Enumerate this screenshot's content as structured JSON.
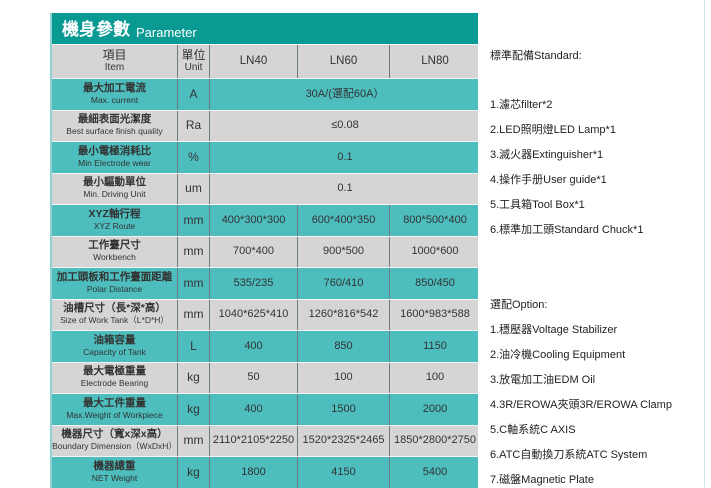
{
  "title": {
    "zh": "機身參數",
    "en": "Parameter"
  },
  "header": {
    "item_zh": "項目",
    "item_en": "Item",
    "unit_zh": "單位",
    "unit_en": "Unit",
    "models": [
      "LN40",
      "LN60",
      "LN80"
    ]
  },
  "rows": [
    {
      "zh": "最大加工電流",
      "en": "Max. current",
      "unit": "A",
      "span": "30A/(選配60A）",
      "style": "t"
    },
    {
      "zh": "最細表面光潔度",
      "en": "Best surface finish quality",
      "unit": "Ra",
      "span": "≤0.08",
      "style": "g"
    },
    {
      "zh": "最小電極消耗比",
      "en": "Min Electrode wear",
      "unit": "%",
      "span": "0.1",
      "style": "t"
    },
    {
      "zh": "最小驅動單位",
      "en": "Min. Driving Unit",
      "unit": "um",
      "span": "0.1",
      "style": "g"
    },
    {
      "zh": "XYZ軸行程",
      "en": "XYZ Route",
      "unit": "mm",
      "values": [
        "400*300*300",
        "600*400*350",
        "800*500*400"
      ],
      "style": "t"
    },
    {
      "zh": "工作臺尺寸",
      "en": "Workbench",
      "unit": "mm",
      "values": [
        "700*400",
        "900*500",
        "1000*600"
      ],
      "style": "g"
    },
    {
      "zh": "加工頭板和工作臺面距離",
      "en": "Polar Distance",
      "unit": "mm",
      "values": [
        "535/235",
        "760/410",
        "850/450"
      ],
      "style": "t"
    },
    {
      "zh": "油槽尺寸（長*深*高）",
      "en": "Size of Work Tank（L*D*H）",
      "unit": "mm",
      "values": [
        "1040*625*410",
        "1260*816*542",
        "1600*983*588"
      ],
      "style": "g"
    },
    {
      "zh": "油箱容量",
      "en": "Capacity of Tank",
      "unit": "L",
      "values": [
        "400",
        "850",
        "1150"
      ],
      "style": "t"
    },
    {
      "zh": "最大電極重量",
      "en": "Electrode Bearing",
      "unit": "kg",
      "values": [
        "50",
        "100",
        "100"
      ],
      "style": "g"
    },
    {
      "zh": "最大工件重量",
      "en": "Max.Weight of Workpiece",
      "unit": "kg",
      "values": [
        "400",
        "1500",
        "2000"
      ],
      "style": "t"
    },
    {
      "zh": "機器尺寸（寬x深x高）",
      "en": "Boundary Dimension（WxDxH）",
      "unit": "mm",
      "values": [
        "2110*2105*2250",
        "1520*2325*2465",
        "1850*2800*2750"
      ],
      "style": "g"
    },
    {
      "zh": "機器總重",
      "en": "NET Weight",
      "unit": "kg",
      "values": [
        "1800",
        "4150",
        "5400"
      ],
      "style": "t"
    }
  ],
  "standard": {
    "heading": "標準配備Standard:",
    "items": [
      "1.濾芯filter*2",
      "2.LED照明燈LED Lamp*1",
      "3.滅火器Extinguisher*1",
      "4.操作手册User guide*1",
      "5.工具箱Tool Box*1",
      "6.標準加工頭Standard  Chuck*1"
    ]
  },
  "option": {
    "heading": "選配Option:",
    "items": [
      "1.穩壓器Voltage Stabilizer",
      "2.油冷機Cooling Equipment",
      "3.放電加工油EDM Oil",
      "4.3R/EROWA夾頭3R/EROWA Clamp",
      "5.C軸系統C AXIS",
      "6.ATC自動換刀系統ATC System",
      "7.磁盤Magnetic Plate"
    ]
  },
  "colors": {
    "title_bg": "#0a9a94",
    "teal_row": "#4dbdbd",
    "gray_row": "#d5d5d5"
  }
}
